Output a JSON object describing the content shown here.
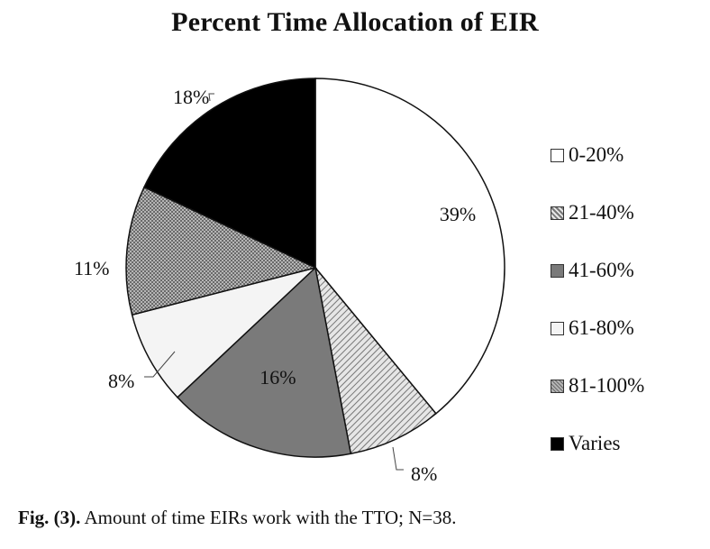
{
  "caption": {
    "prefix": "Fig. (3).",
    "text": "Amount of time EIRs work with the TTO; N=38."
  },
  "chart_data": {
    "type": "pie",
    "title": "Percent Time Allocation of EIR",
    "slices": [
      {
        "label": "0-20%",
        "value": 39,
        "display": "39%",
        "color": "#ffffff",
        "pattern": "solid"
      },
      {
        "label": "21-40%",
        "value": 8,
        "display": "8%",
        "color": "#cfcfcf",
        "pattern": "diagonal"
      },
      {
        "label": "41-60%",
        "value": 16,
        "display": "16%",
        "color": "#7a7a7a",
        "pattern": "solid"
      },
      {
        "label": "61-80%",
        "value": 8,
        "display": "8%",
        "color": "#f4f4f4",
        "pattern": "solid"
      },
      {
        "label": "81-100%",
        "value": 11,
        "display": "11%",
        "color": "#9a9a9a",
        "pattern": "dots"
      },
      {
        "label": "Varies",
        "value": 18,
        "display": "18%",
        "color": "#000000",
        "pattern": "solid"
      }
    ],
    "legend_position": "right"
  }
}
